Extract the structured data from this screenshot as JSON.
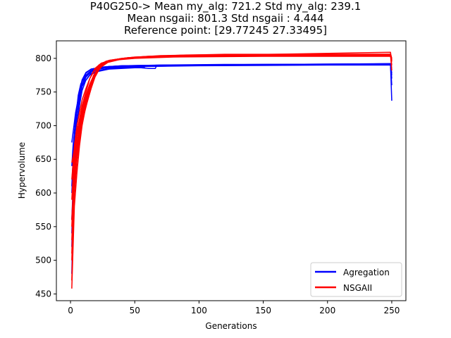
{
  "chart_data": {
    "type": "line",
    "title_lines": [
      "P40G250-> Mean my_alg: 721.2 Std my_alg: 239.1",
      "Mean nsgaii: 801.3 Std nsgaii : 4.444",
      "Reference point: [29.77245 27.33495]"
    ],
    "xlabel": "Generations",
    "ylabel": "Hypervolume",
    "xlim": [
      -11,
      261
    ],
    "ylim": [
      440,
      826
    ],
    "xticks": [
      0,
      50,
      100,
      150,
      200,
      250
    ],
    "yticks": [
      450,
      500,
      550,
      600,
      650,
      700,
      750,
      800
    ],
    "legend": {
      "placement": "lower-right",
      "entries": [
        {
          "label": "Agregation",
          "color": "#0000ff"
        },
        {
          "label": "NSGAII",
          "color": "#ff0000"
        }
      ]
    },
    "series": [
      {
        "name": "Agregation",
        "color": "#0000ff",
        "runs": [
          [
            [
              1,
              480
            ],
            [
              2,
              560
            ],
            [
              3,
              640
            ],
            [
              5,
              700
            ],
            [
              7,
              740
            ],
            [
              9,
              760
            ],
            [
              12,
              775
            ],
            [
              16,
              782
            ],
            [
              22,
              786
            ],
            [
              30,
              788
            ],
            [
              45,
              789
            ],
            [
              70,
              790
            ],
            [
              120,
              791
            ],
            [
              200,
              791
            ],
            [
              249,
              792
            ],
            [
              250,
              737
            ]
          ],
          [
            [
              1,
              675
            ],
            [
              2,
              690
            ],
            [
              4,
              720
            ],
            [
              6,
              740
            ],
            [
              8,
              755
            ],
            [
              11,
              765
            ],
            [
              15,
              775
            ],
            [
              20,
              780
            ],
            [
              30,
              784
            ],
            [
              50,
              786
            ],
            [
              57,
              786
            ],
            [
              58,
              788
            ],
            [
              100,
              789
            ],
            [
              200,
              790
            ],
            [
              249,
              790
            ],
            [
              250,
              770
            ]
          ],
          [
            [
              1,
              600
            ],
            [
              2,
              640
            ],
            [
              3,
              680
            ],
            [
              5,
              720
            ],
            [
              7,
              748
            ],
            [
              9,
              765
            ],
            [
              12,
              778
            ],
            [
              16,
              784
            ],
            [
              25,
              787
            ],
            [
              40,
              789
            ],
            [
              80,
              790
            ],
            [
              160,
              791
            ],
            [
              249,
              792
            ],
            [
              250,
              785
            ]
          ],
          [
            [
              1,
              560
            ],
            [
              2,
              610
            ],
            [
              3,
              660
            ],
            [
              5,
              705
            ],
            [
              7,
              735
            ],
            [
              9,
              758
            ],
            [
              12,
              772
            ],
            [
              16,
              780
            ],
            [
              24,
              785
            ],
            [
              36,
              788
            ],
            [
              60,
              789
            ],
            [
              110,
              790
            ],
            [
              249,
              791
            ],
            [
              250,
              760
            ]
          ],
          [
            [
              1,
              520
            ],
            [
              2,
              590
            ],
            [
              3,
              650
            ],
            [
              5,
              700
            ],
            [
              7,
              730
            ],
            [
              9,
              752
            ],
            [
              12,
              768
            ],
            [
              16,
              778
            ],
            [
              24,
              783
            ],
            [
              36,
              786
            ],
            [
              60,
              788
            ],
            [
              110,
              790
            ],
            [
              249,
              791
            ],
            [
              250,
              778
            ]
          ],
          [
            [
              1,
              640
            ],
            [
              2,
              670
            ],
            [
              4,
              710
            ],
            [
              6,
              745
            ],
            [
              8,
              762
            ],
            [
              11,
              772
            ],
            [
              15,
              780
            ],
            [
              20,
              784
            ],
            [
              30,
              786
            ],
            [
              55,
              786
            ],
            [
              60,
              785
            ],
            [
              66,
              785
            ],
            [
              67,
              789
            ],
            [
              120,
              790
            ],
            [
              249,
              791
            ],
            [
              250,
              788
            ]
          ],
          [
            [
              1,
              610
            ],
            [
              2,
              650
            ],
            [
              3,
              690
            ],
            [
              5,
              725
            ],
            [
              7,
              750
            ],
            [
              9,
              768
            ],
            [
              12,
              779
            ],
            [
              16,
              784
            ],
            [
              25,
              787
            ],
            [
              40,
              789
            ],
            [
              80,
              790
            ],
            [
              160,
              791
            ],
            [
              249,
              792
            ],
            [
              250,
              790
            ]
          ],
          [
            [
              1,
              540
            ],
            [
              2,
              600
            ],
            [
              3,
              655
            ],
            [
              5,
              705
            ],
            [
              7,
              738
            ],
            [
              9,
              760
            ],
            [
              12,
              774
            ],
            [
              16,
              781
            ],
            [
              24,
              785
            ],
            [
              36,
              787
            ],
            [
              60,
              789
            ],
            [
              110,
              790
            ],
            [
              249,
              791
            ],
            [
              250,
              775
            ]
          ]
        ]
      },
      {
        "name": "NSGAII",
        "color": "#ff0000",
        "runs": [
          [
            [
              1,
              458
            ],
            [
              2,
              520
            ],
            [
              3,
              580
            ],
            [
              5,
              630
            ],
            [
              7,
              670
            ],
            [
              9,
              700
            ],
            [
              11,
              720
            ],
            [
              13,
              738
            ],
            [
              16,
              760
            ],
            [
              19,
              778
            ],
            [
              22,
              790
            ],
            [
              28,
              796
            ],
            [
              40,
              800
            ],
            [
              60,
              803
            ],
            [
              100,
              805
            ],
            [
              200,
              806
            ],
            [
              249,
              806
            ],
            [
              250,
              800
            ]
          ],
          [
            [
              1,
              645
            ],
            [
              2,
              655
            ],
            [
              3,
              665
            ],
            [
              5,
              690
            ],
            [
              7,
              710
            ],
            [
              9,
              730
            ],
            [
              12,
              750
            ],
            [
              15,
              770
            ],
            [
              19,
              785
            ],
            [
              24,
              793
            ],
            [
              32,
              797
            ],
            [
              50,
              800
            ],
            [
              80,
              802
            ],
            [
              150,
              803
            ],
            [
              249,
              803
            ],
            [
              250,
              795
            ]
          ],
          [
            [
              1,
              500
            ],
            [
              2,
              560
            ],
            [
              3,
              610
            ],
            [
              5,
              650
            ],
            [
              7,
              680
            ],
            [
              9,
              705
            ],
            [
              11,
              722
            ],
            [
              14,
              742
            ],
            [
              17,
              762
            ],
            [
              20,
              778
            ],
            [
              24,
              790
            ],
            [
              30,
              797
            ],
            [
              45,
              801
            ],
            [
              70,
              804
            ],
            [
              120,
              806
            ],
            [
              249,
              806
            ],
            [
              250,
              790
            ]
          ],
          [
            [
              1,
              530
            ],
            [
              2,
              580
            ],
            [
              3,
              620
            ],
            [
              5,
              660
            ],
            [
              7,
              690
            ],
            [
              9,
              712
            ],
            [
              12,
              735
            ],
            [
              15,
              756
            ],
            [
              18,
              772
            ],
            [
              22,
              786
            ],
            [
              27,
              794
            ],
            [
              35,
              798
            ],
            [
              55,
              802
            ],
            [
              90,
              804
            ],
            [
              160,
              805
            ],
            [
              249,
              805
            ],
            [
              250,
              798
            ]
          ],
          [
            [
              1,
              560
            ],
            [
              2,
              600
            ],
            [
              3,
              640
            ],
            [
              5,
              675
            ],
            [
              7,
              700
            ],
            [
              9,
              720
            ],
            [
              12,
              740
            ],
            [
              15,
              760
            ],
            [
              18,
              775
            ],
            [
              22,
              788
            ],
            [
              28,
              795
            ],
            [
              38,
              799
            ],
            [
              60,
              802
            ],
            [
              100,
              804
            ],
            [
              249,
              804
            ],
            [
              250,
              801
            ]
          ],
          [
            [
              1,
              590
            ],
            [
              2,
              625
            ],
            [
              3,
              655
            ],
            [
              5,
              685
            ],
            [
              7,
              705
            ],
            [
              9,
              725
            ],
            [
              12,
              745
            ],
            [
              15,
              762
            ],
            [
              19,
              778
            ],
            [
              24,
              790
            ],
            [
              30,
              796
            ],
            [
              45,
              800
            ],
            [
              80,
              803
            ],
            [
              249,
              804
            ],
            [
              250,
              803
            ]
          ],
          [
            [
              1,
              510
            ],
            [
              2,
              570
            ],
            [
              3,
              615
            ],
            [
              5,
              655
            ],
            [
              7,
              685
            ],
            [
              9,
              708
            ],
            [
              11,
              728
            ],
            [
              14,
              748
            ],
            [
              17,
              765
            ],
            [
              21,
              780
            ],
            [
              26,
              792
            ],
            [
              34,
              798
            ],
            [
              50,
              802
            ],
            [
              90,
              805
            ],
            [
              249,
              806
            ],
            [
              250,
              782
            ]
          ],
          [
            [
              1,
              620
            ],
            [
              2,
              645
            ],
            [
              3,
              670
            ],
            [
              5,
              700
            ],
            [
              7,
              720
            ],
            [
              9,
              738
            ],
            [
              12,
              755
            ],
            [
              15,
              770
            ],
            [
              19,
              783
            ],
            [
              24,
              792
            ],
            [
              30,
              797
            ],
            [
              45,
              801
            ],
            [
              70,
              803
            ],
            [
              130,
              804
            ],
            [
              249,
              805
            ],
            [
              250,
              799
            ]
          ],
          [
            [
              1,
              470
            ],
            [
              2,
              540
            ],
            [
              3,
              600
            ],
            [
              5,
              648
            ],
            [
              7,
              678
            ],
            [
              9,
              702
            ],
            [
              11,
              720
            ],
            [
              13,
              735
            ],
            [
              16,
              755
            ],
            [
              19,
              772
            ],
            [
              23,
              786
            ],
            [
              29,
              794
            ],
            [
              40,
              799
            ],
            [
              65,
              802
            ],
            [
              110,
              804
            ],
            [
              249,
              805
            ],
            [
              250,
              796
            ]
          ],
          [
            [
              1,
              550
            ],
            [
              2,
              595
            ],
            [
              3,
              635
            ],
            [
              5,
              670
            ],
            [
              7,
              697
            ],
            [
              9,
              717
            ],
            [
              12,
              738
            ],
            [
              15,
              758
            ],
            [
              18,
              773
            ],
            [
              22,
              786
            ],
            [
              28,
              794
            ],
            [
              38,
              799
            ],
            [
              60,
              802
            ],
            [
              100,
              804
            ],
            [
              249,
              809
            ],
            [
              250,
              797
            ]
          ]
        ]
      }
    ]
  }
}
